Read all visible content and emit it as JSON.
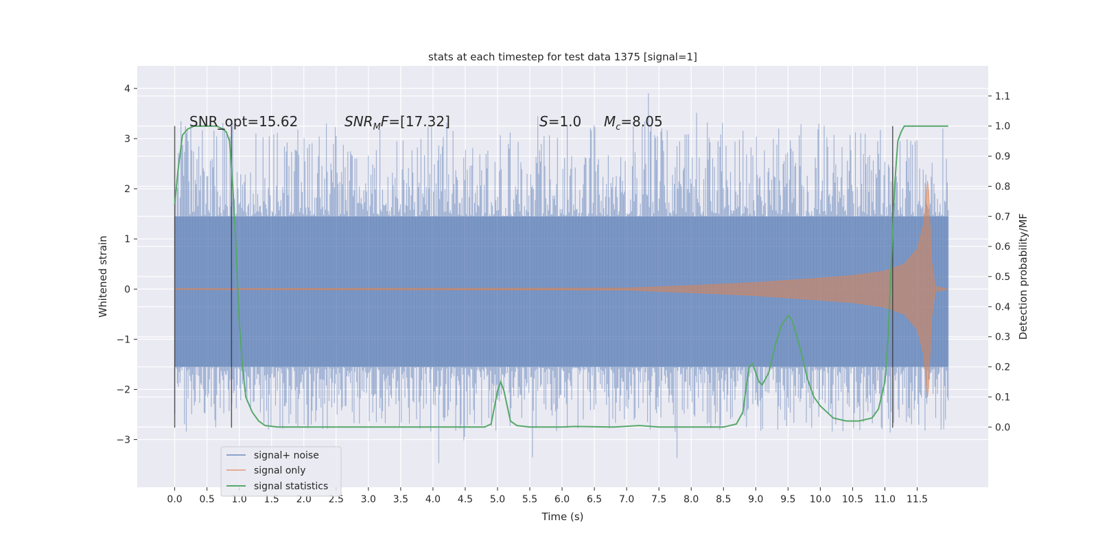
{
  "chart_data": {
    "type": "line",
    "title": "stats at each timestep for test data 1375 [signal=1]",
    "xlabel": "Time (s)",
    "ylabel": "Whitened strain",
    "ylabel_right": "Detection probability/MF",
    "xlim": [
      -0.58,
      12.6
    ],
    "ylim": [
      -3.95,
      4.45
    ],
    "ylim_right": [
      -0.2,
      1.2
    ],
    "xticks": [
      "0.0",
      "0.5",
      "1.0",
      "1.5",
      "2.0",
      "2.5",
      "3.0",
      "3.5",
      "4.0",
      "4.5",
      "5.0",
      "5.5",
      "6.0",
      "6.5",
      "7.0",
      "7.5",
      "8.0",
      "8.5",
      "9.0",
      "9.5",
      "10.0",
      "10.5",
      "11.0",
      "11.5"
    ],
    "yticks_left": [
      "−3",
      "−2",
      "−1",
      "0",
      "1",
      "2",
      "3",
      "4"
    ],
    "yticks_right": [
      "0.0",
      "0.1",
      "0.2",
      "0.3",
      "0.4",
      "0.5",
      "0.6",
      "0.7",
      "0.8",
      "0.9",
      "1.0",
      "1.1"
    ],
    "grid": true,
    "legend_position": "lower-left",
    "annotations": {
      "snr_opt": "SNR_opt=15.62",
      "snr_mf_label": "SNR",
      "snr_mf_sub": "M",
      "snr_mf_tail": "F=[17.32]",
      "s_label": "S",
      "s_tail": "=1.0",
      "mc_label": "M",
      "mc_sub": "c",
      "mc_tail": "=8.05"
    },
    "vlines": [
      0.0,
      0.88,
      11.12
    ],
    "series": [
      {
        "name": "signal+ noise",
        "color": "#4c72b0",
        "kind": "noise",
        "x_range": [
          0.0,
          11.98
        ],
        "band": [
          -1.55,
          1.45
        ],
        "spikes_max": [
          4.1,
          -3.6
        ]
      },
      {
        "name": "signal only",
        "color": "#dd8452",
        "kind": "chirp",
        "envelope": [
          [
            0.0,
            0.01
          ],
          [
            7.0,
            0.02
          ],
          [
            8.0,
            0.07
          ],
          [
            9.0,
            0.13
          ],
          [
            10.0,
            0.22
          ],
          [
            10.5,
            0.27
          ],
          [
            11.0,
            0.36
          ],
          [
            11.3,
            0.5
          ],
          [
            11.5,
            0.8
          ],
          [
            11.6,
            1.3
          ],
          [
            11.67,
            2.3
          ],
          [
            11.72,
            0.6
          ],
          [
            11.78,
            0.05
          ],
          [
            11.98,
            0.0
          ]
        ]
      },
      {
        "name": "signal statistics",
        "color": "#55a868",
        "x": [
          0.0,
          0.05,
          0.12,
          0.2,
          0.3,
          0.5,
          0.65,
          0.75,
          0.8,
          0.85,
          0.9,
          0.95,
          1.0,
          1.05,
          1.1,
          1.2,
          1.3,
          1.4,
          1.6,
          2.0,
          3.0,
          4.0,
          4.6,
          4.8,
          4.9,
          5.0,
          5.05,
          5.1,
          5.2,
          5.3,
          5.5,
          6.0,
          6.2,
          6.8,
          7.2,
          7.5,
          8.0,
          8.5,
          8.7,
          8.8,
          8.85,
          8.9,
          8.95,
          9.0,
          9.05,
          9.1,
          9.2,
          9.3,
          9.4,
          9.5,
          9.55,
          9.6,
          9.7,
          9.8,
          9.9,
          10.0,
          10.2,
          10.4,
          10.6,
          10.8,
          10.9,
          11.0,
          11.05,
          11.1,
          11.15,
          11.2,
          11.25,
          11.3,
          11.4,
          11.6,
          11.8,
          11.98
        ],
        "values": [
          0.74,
          0.85,
          0.97,
          0.99,
          1.0,
          1.0,
          1.0,
          0.99,
          0.98,
          0.95,
          0.8,
          0.6,
          0.35,
          0.2,
          0.1,
          0.05,
          0.02,
          0.005,
          0.0,
          0.0,
          0.0,
          0.0,
          0.0,
          0.0,
          0.01,
          0.12,
          0.15,
          0.12,
          0.02,
          0.005,
          0.0,
          0.0,
          0.002,
          0.0,
          0.005,
          0.0,
          0.0,
          0.0,
          0.01,
          0.05,
          0.13,
          0.2,
          0.21,
          0.18,
          0.15,
          0.14,
          0.18,
          0.27,
          0.34,
          0.37,
          0.36,
          0.33,
          0.25,
          0.16,
          0.1,
          0.07,
          0.03,
          0.02,
          0.02,
          0.03,
          0.06,
          0.15,
          0.3,
          0.55,
          0.8,
          0.95,
          0.98,
          1.0,
          1.0,
          1.0,
          1.0,
          1.0
        ]
      }
    ]
  }
}
